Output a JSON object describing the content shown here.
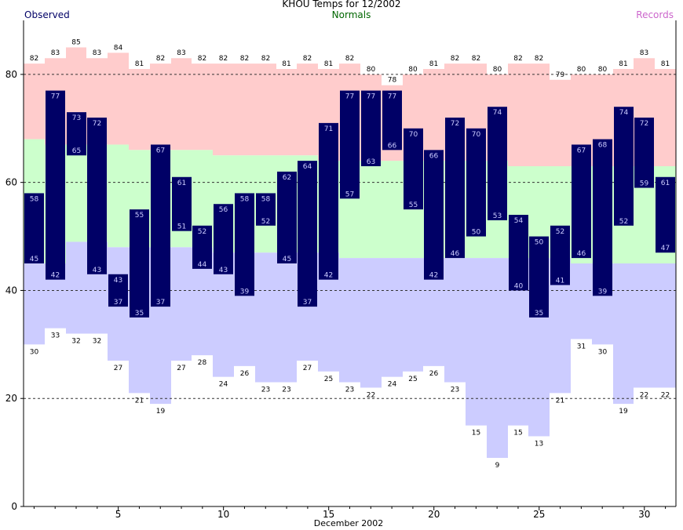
{
  "chart_data": {
    "type": "bar",
    "title": "KHOU Temps for 12/2002",
    "legend": {
      "observed": "Observed",
      "normals": "Normals",
      "records": "Records",
      "placement": "top"
    },
    "xlabel": "December 2002",
    "ylabel": "",
    "ylim": [
      0,
      90
    ],
    "yticks": [
      0,
      20,
      40,
      60,
      80
    ],
    "xticks": [
      5,
      10,
      15,
      20,
      25,
      30
    ],
    "grid": "dashed horizontal at 20, 40, 60, 80",
    "days": [
      1,
      2,
      3,
      4,
      5,
      6,
      7,
      8,
      9,
      10,
      11,
      12,
      13,
      14,
      15,
      16,
      17,
      18,
      19,
      20,
      21,
      22,
      23,
      24,
      25,
      26,
      27,
      28,
      29,
      30,
      31
    ],
    "series": [
      {
        "name": "Record High",
        "values": [
          82,
          83,
          85,
          83,
          84,
          81,
          82,
          83,
          82,
          82,
          82,
          82,
          81,
          82,
          81,
          82,
          80,
          78,
          80,
          81,
          82,
          82,
          80,
          82,
          82,
          79,
          80,
          80,
          81,
          83,
          81
        ]
      },
      {
        "name": "Normal High",
        "values": [
          68,
          67,
          67,
          67,
          67,
          66,
          66,
          66,
          66,
          65,
          65,
          65,
          65,
          65,
          64,
          64,
          64,
          64,
          64,
          64,
          64,
          64,
          64,
          63,
          63,
          63,
          63,
          63,
          63,
          63,
          63
        ]
      },
      {
        "name": "Observed High",
        "values": [
          58,
          77,
          73,
          72,
          43,
          55,
          67,
          61,
          52,
          56,
          58,
          58,
          62,
          64,
          71,
          77,
          77,
          77,
          70,
          66,
          72,
          70,
          74,
          54,
          50,
          52,
          67,
          68,
          74,
          72,
          61
        ]
      },
      {
        "name": "Observed Low",
        "values": [
          45,
          42,
          65,
          43,
          37,
          35,
          37,
          51,
          44,
          43,
          39,
          52,
          45,
          37,
          42,
          57,
          63,
          66,
          55,
          42,
          46,
          50,
          53,
          40,
          35,
          41,
          46,
          39,
          52,
          59,
          47
        ]
      },
      {
        "name": "Normal Low",
        "values": [
          45,
          45,
          49,
          49,
          48,
          48,
          48,
          48,
          48,
          47,
          47,
          47,
          47,
          47,
          47,
          46,
          46,
          46,
          46,
          46,
          46,
          46,
          46,
          46,
          46,
          46,
          45,
          45,
          45,
          45,
          45
        ]
      },
      {
        "name": "Record Low",
        "values": [
          30,
          33,
          32,
          32,
          27,
          21,
          19,
          27,
          28,
          24,
          26,
          23,
          23,
          27,
          25,
          23,
          22,
          24,
          25,
          26,
          23,
          15,
          9,
          15,
          13,
          21,
          31,
          30,
          19,
          22,
          22
        ]
      }
    ],
    "colors": {
      "records": "#ffcccc",
      "normals": "#ccffcc",
      "normal_low_band": "#ccccff",
      "observed": "#000066",
      "observed_label": "#ccccff",
      "legend_records": "#cc66cc",
      "legend_normals": "#006600",
      "legend_observed": "#000066"
    }
  }
}
